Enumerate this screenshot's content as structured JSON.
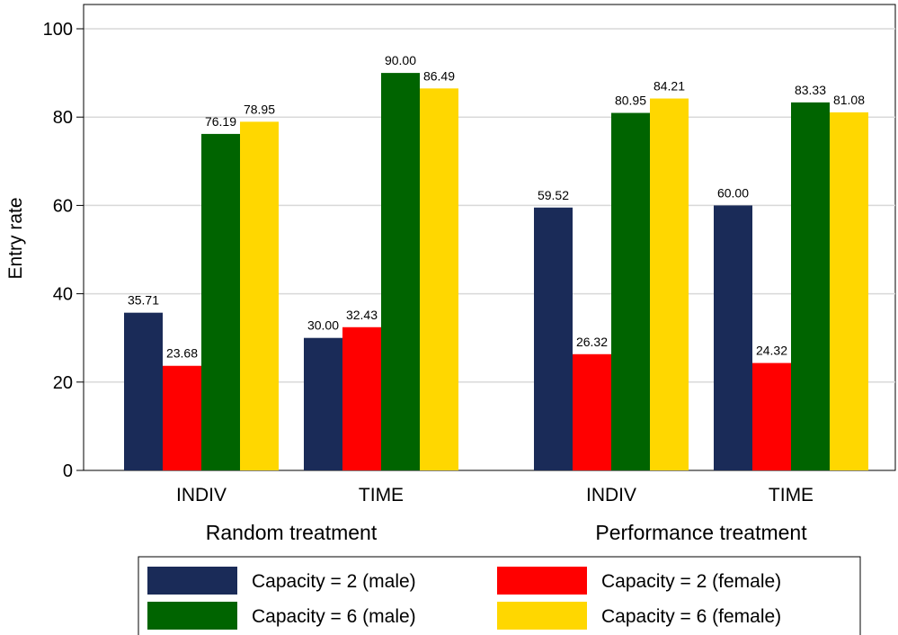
{
  "chart_data": {
    "type": "bar",
    "ylabel": "Entry rate",
    "ylim": [
      0,
      100
    ],
    "yticks": [
      0,
      20,
      40,
      60,
      80,
      100
    ],
    "grid": true,
    "legend_position": "bottom",
    "groups": [
      {
        "label": "Random treatment",
        "categories": [
          {
            "label": "INDIV",
            "values": [
              35.71,
              23.68,
              76.19,
              78.95
            ]
          },
          {
            "label": "TIME",
            "values": [
              30.0,
              32.43,
              90.0,
              86.49
            ]
          }
        ]
      },
      {
        "label": "Performance treatment",
        "categories": [
          {
            "label": "INDIV",
            "values": [
              59.52,
              26.32,
              80.95,
              84.21
            ]
          },
          {
            "label": "TIME",
            "values": [
              60.0,
              24.32,
              83.33,
              81.08
            ]
          }
        ]
      }
    ],
    "series": [
      {
        "name": "Capacity = 2 (male)",
        "color": "#1a2b58"
      },
      {
        "name": "Capacity = 2 (female)",
        "color": "#ff0000"
      },
      {
        "name": "Capacity = 6 (male)",
        "color": "#006400"
      },
      {
        "name": "Capacity = 6 (female)",
        "color": "#ffd700"
      }
    ]
  }
}
